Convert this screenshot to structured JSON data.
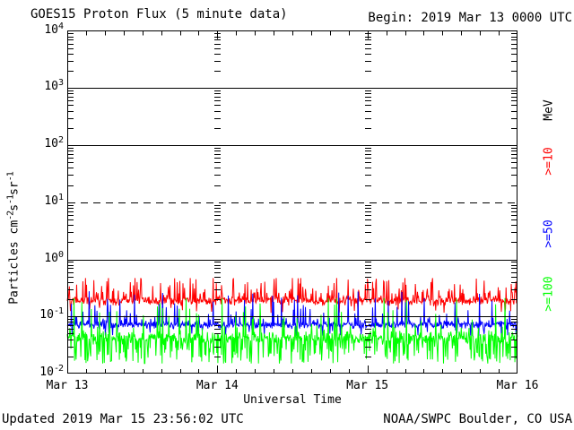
{
  "chart_data": {
    "type": "line",
    "title": "GOES15 Proton Flux (5 minute data)",
    "begin_label": "Begin: 2019 Mar 13 0000 UTC",
    "xlabel": "Universal Time",
    "ylabel_parts": {
      "p0": "Particles cm",
      "s0": "-2",
      "p1": "s",
      "s1": "-1",
      "p2": "sr",
      "s2": "-1"
    },
    "y_unit_right": "MeV",
    "ylim_exp": [
      -2,
      4
    ],
    "yticks": [
      {
        "base": "10",
        "exp": "4"
      },
      {
        "base": "10",
        "exp": "3"
      },
      {
        "base": "10",
        "exp": "2"
      },
      {
        "base": "10",
        "exp": "1"
      },
      {
        "base": "10",
        "exp": "0"
      },
      {
        "base": "10",
        "exp": "-1"
      },
      {
        "base": "10",
        "exp": "-2"
      }
    ],
    "xticks": [
      "Mar 13",
      "Mar 14",
      "Mar 15",
      "Mar 16"
    ],
    "duration_days": 3,
    "sample_minutes": 5,
    "minor_time_tick_hours": 3,
    "hlines": [
      {
        "value_exp": 3,
        "style": "solid"
      },
      {
        "value_exp": 2,
        "style": "solid"
      },
      {
        "value_exp": 1,
        "style": "dashed"
      },
      {
        "value_exp": 0,
        "style": "solid"
      },
      {
        "value_exp": -1,
        "style": "solid"
      }
    ],
    "series": [
      {
        "name": "protons_ge_10MeV",
        "legend": ">=10",
        "color": "#ff0000",
        "baseline": 0.19,
        "noise_log": 0.12,
        "spike_prob": 0.18,
        "spike_log_max": 0.3,
        "dip_prob": 0.02,
        "dip_log_max": 0.1,
        "min": 0.11,
        "max": 0.47,
        "seed": 101
      },
      {
        "name": "protons_ge_50MeV",
        "legend": ">=50",
        "color": "#0000ff",
        "baseline": 0.072,
        "noise_log": 0.1,
        "spike_prob": 0.1,
        "spike_log_max": 0.5,
        "dip_prob": 0.04,
        "dip_log_max": 0.15,
        "min": 0.046,
        "max": 0.3,
        "seed": 202
      },
      {
        "name": "protons_ge_100MeV",
        "legend": ">=100",
        "color": "#00ff00",
        "baseline": 0.042,
        "noise_log": 0.17,
        "spike_prob": 0.1,
        "spike_log_max": 0.6,
        "dip_prob": 0.22,
        "dip_log_max": 0.3,
        "min": 0.015,
        "max": 0.21,
        "seed": 303
      }
    ],
    "footer_left": "Updated 2019 Mar 15 23:56:02 UTC",
    "footer_right": "NOAA/SWPC Boulder, CO USA",
    "axis_color": "#000000",
    "background_color": "#ffffff",
    "legend_position": "right",
    "grid": true
  }
}
